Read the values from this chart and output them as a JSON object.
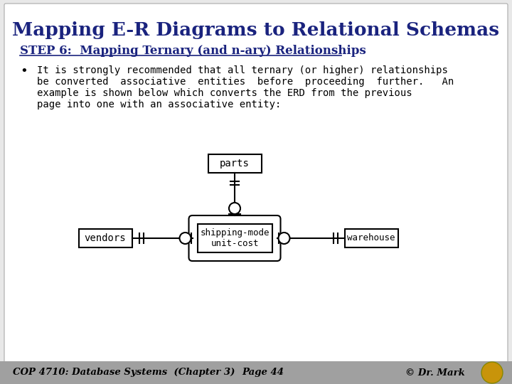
{
  "title": "Mapping E-R Diagrams to Relational Schemas",
  "subtitle": "STEP 6:  Mapping Ternary (and n-ary) Relationships",
  "bullet_lines": [
    "It is strongly recommended that all ternary (or higher) relationships",
    "be converted  associative  entities  before  proceeding  further.   An",
    "example is shown below which converts the ERD from the previous",
    "page into one with an associative entity:"
  ],
  "title_color": "#1a237e",
  "subtitle_color": "#1a237e",
  "body_color": "#000000",
  "bg_color": "#e8e8e8",
  "slide_bg": "#ffffff",
  "footer_bg": "#a0a0a0",
  "footer_text1": "COP 4710: Database Systems  (Chapter 3)",
  "footer_text2": "Page 44",
  "footer_text3": "© Dr. Mark",
  "entity_parts": "parts",
  "entity_vendors": "vendors",
  "entity_warehouse": "warehouse",
  "assoc_label1": "shipping-mode",
  "assoc_label2": "unit-cost"
}
